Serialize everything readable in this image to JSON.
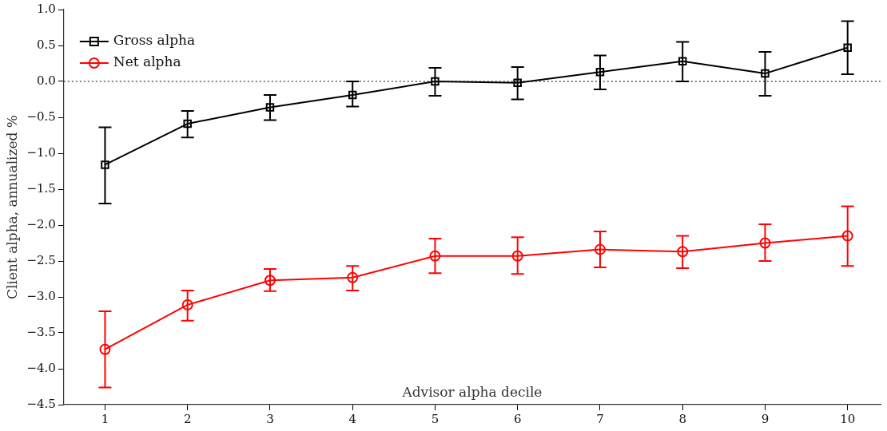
{
  "chart_data": {
    "type": "line",
    "xlabel": "Advisor alpha decile",
    "ylabel": "Client alpha, annualized %",
    "x": [
      1,
      2,
      3,
      4,
      5,
      6,
      7,
      8,
      9,
      10
    ],
    "xlim": [
      0.5,
      10.4
    ],
    "xticks": [
      1,
      2,
      3,
      4,
      5,
      6,
      7,
      8,
      9,
      10
    ],
    "ylim": [
      -4.5,
      1.0
    ],
    "yticks": [
      {
        "value": -4.5,
        "label": "−4.5"
      },
      {
        "value": -4,
        "label": "−4.0"
      },
      {
        "value": -3.5,
        "label": "−3.5"
      },
      {
        "value": -3,
        "label": "−3.0"
      },
      {
        "value": -2.5,
        "label": "−2.5"
      },
      {
        "value": -2,
        "label": "−2.0"
      },
      {
        "value": -1.5,
        "label": "−1.5"
      },
      {
        "value": -1,
        "label": "−1.0"
      },
      {
        "value": -0.5,
        "label": "−0.5"
      },
      {
        "value": 0,
        "label": "0.0"
      },
      {
        "value": 0.5,
        "label": "0.5"
      },
      {
        "value": 1,
        "label": "1.0"
      }
    ],
    "grid": false,
    "legend": "top left",
    "line_style": "solid",
    "ref_lines": [
      {
        "axis": "y",
        "value": 0,
        "color": "#000000",
        "line_style": "dotted"
      }
    ],
    "series": [
      {
        "name": "Gross alpha",
        "color": "#000000",
        "marker": "square",
        "values": [
          -1.16,
          -0.59,
          -0.36,
          -0.19,
          0.0,
          -0.02,
          0.13,
          0.28,
          0.11,
          0.47
        ],
        "errors": [
          [
            -1.7,
            -0.64
          ],
          [
            -0.78,
            -0.41
          ],
          [
            -0.54,
            -0.19
          ],
          [
            -0.35,
            0.0
          ],
          [
            -0.2,
            0.19
          ],
          [
            -0.25,
            0.2
          ],
          [
            -0.11,
            0.36
          ],
          [
            0.0,
            0.55
          ],
          [
            -0.2,
            0.41
          ],
          [
            0.1,
            0.84
          ]
        ]
      },
      {
        "name": "Net alpha",
        "color": "#ff0000",
        "marker": "circle",
        "values": [
          -3.73,
          -3.11,
          -2.77,
          -2.73,
          -2.43,
          -2.43,
          -2.34,
          -2.37,
          -2.25,
          -2.15
        ],
        "errors": [
          [
            -4.26,
            -3.2
          ],
          [
            -3.33,
            -2.91
          ],
          [
            -2.92,
            -2.61
          ],
          [
            -2.91,
            -2.57
          ],
          [
            -2.67,
            -2.19
          ],
          [
            -2.68,
            -2.17
          ],
          [
            -2.59,
            -2.09
          ],
          [
            -2.6,
            -2.15
          ],
          [
            -2.5,
            -1.99
          ],
          [
            -2.57,
            -1.74
          ]
        ]
      }
    ]
  }
}
